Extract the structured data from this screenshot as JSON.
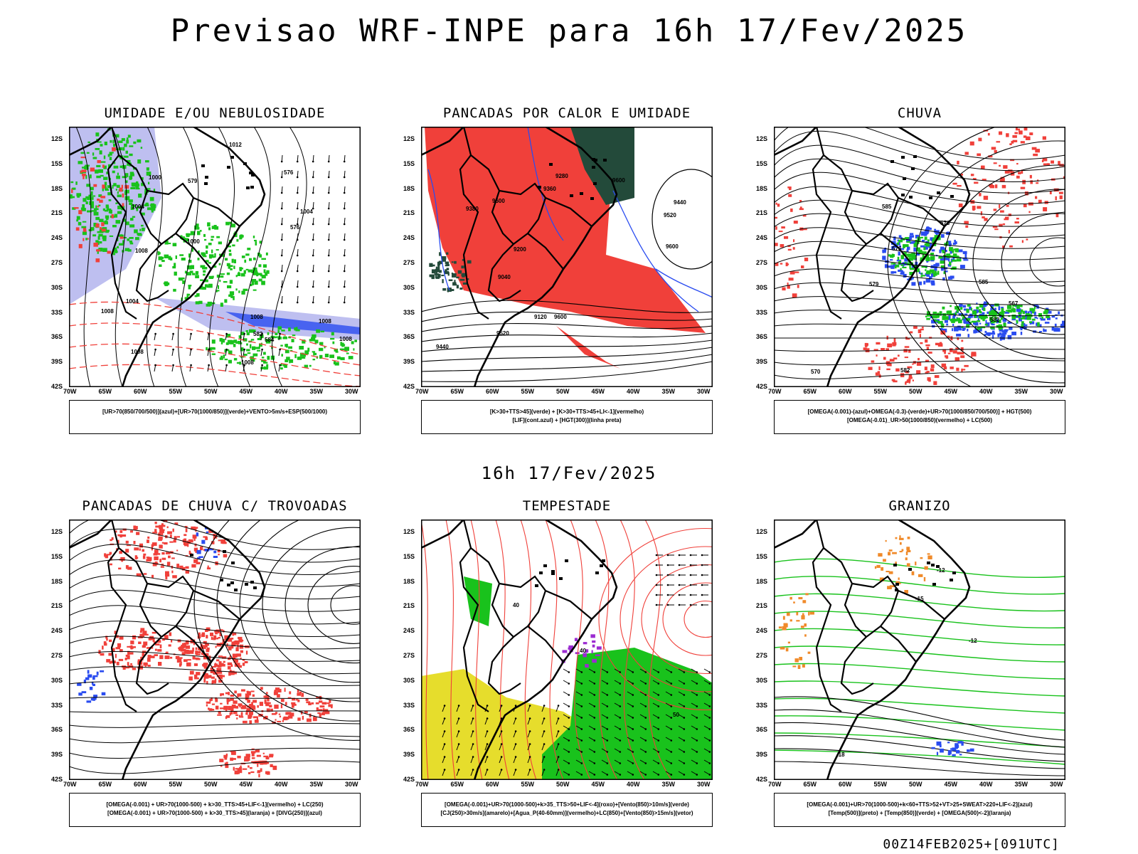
{
  "title": "Previsao WRF-INPE  para 16h 17/Fev/2025",
  "mid_date": "16h 17/Fev/2025",
  "footer": "00Z14FEB2025+[091UTC]",
  "y_ticks": [
    "12S",
    "15S",
    "18S",
    "21S",
    "24S",
    "27S",
    "30S",
    "33S",
    "36S",
    "39S",
    "42S"
  ],
  "x_ticks": [
    "70W",
    "65W",
    "60W",
    "55W",
    "50W",
    "45W",
    "40W",
    "35W",
    "30W"
  ],
  "colors": {
    "red": "#f0403a",
    "green": "#19c21c",
    "blue": "#2a4cf0",
    "lavender": "#b7b8ee",
    "darkgreen": "#234a3a",
    "yellow": "#e6dd2c",
    "orange": "#f08a2a"
  },
  "panels": [
    {
      "title": "UMIDADE E/OU NEBULOSIDADE",
      "legend": [
        "[UR>70(850/700/500)](azul)+[UR>70(1000/850)](verde)+VENTO>5m/s+ESP(500/1000)"
      ],
      "labels": [
        "1008",
        "1008",
        "1008",
        "1004",
        "1008",
        "1008",
        "1000",
        "1012",
        "1008",
        "1004",
        "1004",
        "1000",
        "576",
        "576",
        "579",
        "582",
        "584",
        "1008"
      ]
    },
    {
      "title": "PANCADAS POR CALOR E UMIDADE",
      "legend": [
        "[K>30+TTS>45](verde) + [K>30+TTS>45+LI<-1](vermelho)",
        "[LIF](cont.azul) + [HGT(300)](linha preta)"
      ],
      "labels": [
        "9600",
        "9600",
        "9600",
        "9520",
        "9520",
        "9440",
        "9360",
        "9280",
        "9200",
        "9120",
        "9040",
        "9440",
        "9380",
        "9600"
      ]
    },
    {
      "title": "CHUVA",
      "legend": [
        "[OMEGA(-0.001)-(azul)+OMEGA(-0.3)-(verde)+UR>70(1000/850/700/500)] + HGT(500)",
        "[OMEGA(-0.01)_UR>50(1000/850)(vermelho) + LC(500)"
      ],
      "labels": [
        "585",
        "582",
        "579",
        "573",
        "567",
        "570",
        "582",
        "585",
        "576"
      ]
    },
    {
      "title": "PANCADAS DE CHUVA C/ TROVOADAS",
      "legend": [
        "[OMEGA(-0.001) + UR>70(1000-500) + k>30_TTS>45+LIF<-1](vermelho) + LC(250)",
        "[OMEGA(-0.001) + UR>70(1000-500) + k>30_TTS>45](laranja) + [DIVG(250)](azul)"
      ],
      "labels": []
    },
    {
      "title": "TEMPESTADE",
      "legend": [
        "[OMEGA(-0.001)+UR>70(1000-500)+k>35_TTS>50+LIF<-4](roxo)+[Vento(850)>10m/s](verde)",
        "[CJ(250)>30m/s](amarelo)+[Agua_P(40-60mm)](vermelho)+LC(850)+[Vento(850)>15m/s](vetor)"
      ],
      "labels": [
        "40",
        "50",
        "40"
      ]
    },
    {
      "title": "GRANIZO",
      "legend": [
        "[OMEGA(-0.001)+UR>70(1000-500)+k<60+TTS>52+VT>25+SWEAT>220+LIF<-2](azul)",
        "[Temp(500)](preto) + [Temp(850)](verde) + [OMEGA(500)<-2](laranja)"
      ],
      "labels": [
        "-12",
        "-15",
        "-18",
        "-12"
      ]
    }
  ]
}
